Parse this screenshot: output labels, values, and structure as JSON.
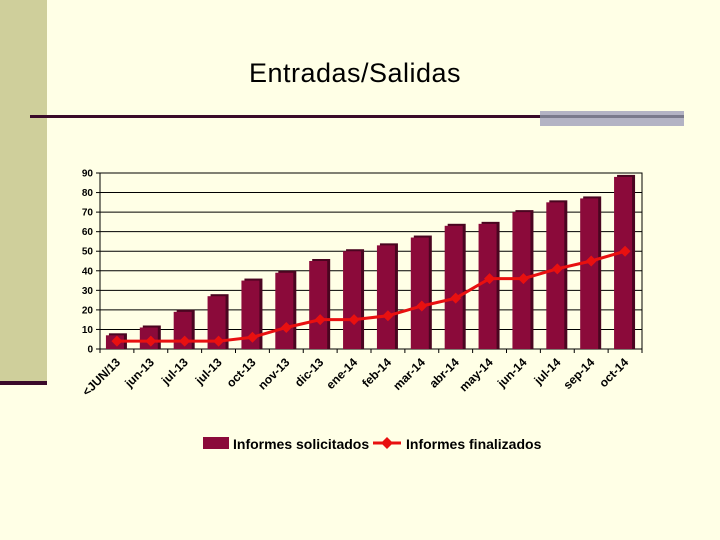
{
  "slide": {
    "title": "Entradas/Salidas"
  },
  "colors": {
    "bar": "#8b0a3a",
    "bar_shadow": "#4a0520",
    "line": "#e81010",
    "background": "#ffffe6",
    "band": "#cfcf9b"
  },
  "chart_data": {
    "type": "bar",
    "categories": [
      "<JUN/13",
      "jun-13",
      "jul-13",
      "jul-13",
      "oct-13",
      "nov-13",
      "dic-13",
      "ene-14",
      "feb-14",
      "mar-14",
      "abr-14",
      "may-14",
      "jun-14",
      "jul-14",
      "sep-14",
      "oct-14"
    ],
    "series": [
      {
        "name": "Informes solicitados",
        "type": "bar",
        "values": [
          7,
          11,
          19,
          27,
          35,
          39,
          45,
          50,
          53,
          57,
          63,
          64,
          70,
          75,
          77,
          88
        ]
      },
      {
        "name": "Informes finalizados",
        "type": "line",
        "values": [
          4,
          4,
          4,
          4,
          6,
          11,
          15,
          15,
          17,
          22,
          26,
          36,
          36,
          41,
          45,
          50
        ]
      }
    ],
    "yticks": [
      0,
      10,
      20,
      30,
      40,
      50,
      60,
      70,
      80,
      90
    ],
    "ylim": [
      0,
      90
    ],
    "grid": true,
    "legend": "bottom"
  }
}
